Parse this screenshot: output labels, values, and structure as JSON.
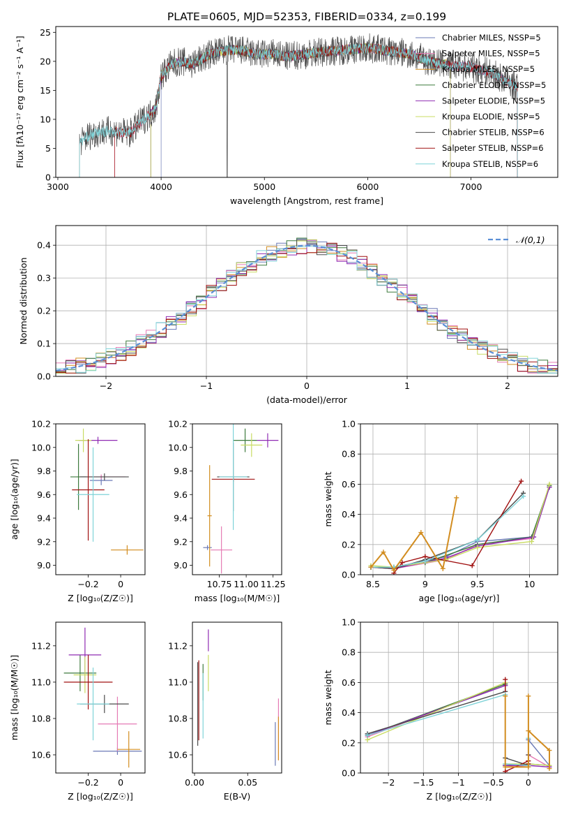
{
  "figure_title": "PLATE=0605, MJD=52353, FIBERID=0334, z=0.199",
  "series_colors": [
    "#6a79b6",
    "#e57ab4",
    "#d28d20",
    "#3d7a3d",
    "#8f2bb3",
    "#c9dc63",
    "#4a4a4a",
    "#a01010",
    "#7fd3d8"
  ],
  "chart_data": [
    {
      "id": "spectrum",
      "type": "line",
      "title": "PLATE=0605, MJD=52353, FIBERID=0334, z=0.199",
      "xlabel": "wavelength [Angstrom, rest frame]",
      "ylabel": "Flux [fλ10⁻¹⁷ erg cm⁻² s⁻¹ A⁻¹]",
      "xlim": [
        2980,
        7840
      ],
      "ylim": [
        0,
        26
      ],
      "xticks": [
        3000,
        4000,
        5000,
        6000,
        7000
      ],
      "yticks": [
        0,
        5,
        10,
        15,
        20,
        25
      ],
      "grid": false,
      "legend_position": "right",
      "legend": [
        "Chabrier MILES, NSSP=5",
        "Salpeter MILES, NSSP=5",
        "Kroupa MILES, NSSP=5",
        "Chabrier ELODIE, NSSP=5",
        "Salpeter ELODIE, NSSP=5",
        "Kroupa ELODIE, NSSP=5",
        "Chabrier STELIB, NSSP=6",
        "Salpeter STELIB, NSSP=6",
        "Kroupa STELIB, NSSP=6"
      ],
      "continuum": [
        [
          3210,
          6
        ],
        [
          3300,
          7.2
        ],
        [
          3400,
          7.8
        ],
        [
          3500,
          8.0
        ],
        [
          3600,
          7.8
        ],
        [
          3700,
          7.6
        ],
        [
          3800,
          9.5
        ],
        [
          3900,
          11
        ],
        [
          3950,
          12
        ],
        [
          4000,
          17.5
        ],
        [
          4100,
          19.5
        ],
        [
          4200,
          20
        ],
        [
          4300,
          19.5
        ],
        [
          4400,
          20.5
        ],
        [
          4500,
          21.5
        ],
        [
          4600,
          21.8
        ],
        [
          4700,
          22
        ],
        [
          4800,
          21.8
        ],
        [
          4900,
          21.3
        ],
        [
          5000,
          21.2
        ],
        [
          5100,
          21.3
        ],
        [
          5200,
          20.8
        ],
        [
          5300,
          21
        ],
        [
          5400,
          21.2
        ],
        [
          5500,
          21.5
        ],
        [
          5600,
          21.7
        ],
        [
          5800,
          22
        ],
        [
          6000,
          22.3
        ],
        [
          6200,
          21.8
        ],
        [
          6400,
          21.3
        ],
        [
          6600,
          20
        ],
        [
          6800,
          19.3
        ],
        [
          7000,
          19
        ],
        [
          7200,
          18
        ],
        [
          7300,
          17
        ],
        [
          7450,
          15.5
        ]
      ],
      "series_ranges": [
        [
          4000,
          7450
        ],
        [
          3550,
          7450
        ],
        [
          3900,
          6800
        ],
        [
          3900,
          6800
        ],
        [
          3900,
          6800
        ],
        [
          3900,
          6800
        ],
        [
          3210,
          7450
        ],
        [
          3550,
          7450
        ],
        [
          3210,
          7450
        ]
      ]
    },
    {
      "id": "residual-hist",
      "type": "step",
      "xlabel": "(data-model)/error",
      "ylabel": "Normed distribution",
      "xlim": [
        -2.5,
        2.5
      ],
      "ylim": [
        0,
        0.46
      ],
      "xticks": [
        -2,
        -1,
        0,
        1,
        2
      ],
      "yticks": [
        0.0,
        0.1,
        0.2,
        0.3,
        0.4
      ],
      "grid": true,
      "legend": [
        "𝒩(0,1)"
      ],
      "legend_position": "top-right",
      "bin_width": 0.1,
      "gaussian": {
        "mean": 0,
        "sigma": 1
      }
    },
    {
      "id": "age-vs-z",
      "type": "errorbar",
      "xlabel": "Z [log₁₀(Z/Z☉)]",
      "ylabel": "age  [log₁₀(age/yr)]",
      "xlim": [
        -0.4,
        0.15
      ],
      "ylim": [
        8.92,
        10.2
      ],
      "xticks": [
        -0.2,
        0.0
      ],
      "yticks": [
        9.0,
        9.2,
        9.4,
        9.6,
        9.8,
        10.0,
        10.2
      ],
      "points": [
        {
          "x": -0.12,
          "xe": 0.07,
          "y": 9.72,
          "ye": 0.04,
          "c": 0
        },
        {
          "x": -0.12,
          "xe": 0.15,
          "y": 9.75,
          "ye": 0.02,
          "c": 1
        },
        {
          "x": 0.04,
          "xe": 0.1,
          "y": 9.13,
          "ye": 0.04,
          "c": 2
        },
        {
          "x": -0.26,
          "xe": 0.05,
          "y": 9.75,
          "ye": 0.28,
          "c": 3
        },
        {
          "x": -0.14,
          "xe": 0.12,
          "y": 10.06,
          "ye": 0.03,
          "c": 4
        },
        {
          "x": -0.23,
          "xe": 0.05,
          "y": 10.06,
          "ye": 0.1,
          "c": 5
        },
        {
          "x": -0.1,
          "xe": 0.15,
          "y": 9.75,
          "ye": 0.03,
          "c": 6
        },
        {
          "x": -0.2,
          "xe": 0.1,
          "y": 9.64,
          "ye": 0.43,
          "c": 7
        },
        {
          "x": -0.17,
          "xe": 0.1,
          "y": 9.6,
          "ye": 0.4,
          "c": 8
        }
      ]
    },
    {
      "id": "age-vs-mass",
      "type": "errorbar",
      "xlabel": "mass [log₁₀(M/M☉)]",
      "ylabel": "",
      "xlim": [
        10.5,
        11.33
      ],
      "ylim": [
        8.92,
        10.2
      ],
      "xticks": [
        10.75,
        11.0,
        11.25
      ],
      "yticks": [
        9.0,
        9.2,
        9.4,
        9.6,
        9.8,
        10.0,
        10.2
      ],
      "xticklabels": [
        "10.75",
        "11.00",
        "11.25"
      ],
      "points": [
        {
          "x": 10.64,
          "xe": 0.04,
          "y": 9.15,
          "ye": 0.02,
          "c": 0
        },
        {
          "x": 10.77,
          "xe": 0.1,
          "y": 9.13,
          "ye": 0.2,
          "c": 1
        },
        {
          "x": 10.66,
          "xe": 0.02,
          "y": 9.42,
          "ye": 0.43,
          "c": 2
        },
        {
          "x": 10.99,
          "xe": 0.11,
          "y": 10.06,
          "ye": 0.1,
          "c": 3
        },
        {
          "x": 11.2,
          "xe": 0.1,
          "y": 10.06,
          "ye": 0.06,
          "c": 4
        },
        {
          "x": 11.05,
          "xe": 0.1,
          "y": 10.02,
          "ye": 0.1,
          "c": 5
        },
        {
          "x": 10.88,
          "xe": 0.15,
          "y": 9.75,
          "ye": 0.29,
          "c": 6
        },
        {
          "x": 10.88,
          "xe": 0.2,
          "y": 9.73,
          "ye": 0.02,
          "c": 7
        },
        {
          "x": 10.88,
          "xe": 0.13,
          "y": 9.75,
          "ye": 0.45,
          "c": 8
        }
      ]
    },
    {
      "id": "massweight-vs-age",
      "type": "line",
      "xlabel": "age  [log₁₀(age/yr)]",
      "ylabel": "mass weight",
      "xlim": [
        8.38,
        10.27
      ],
      "ylim": [
        0,
        1.0
      ],
      "xticks": [
        8.5,
        9.0,
        9.5,
        10.0
      ],
      "yticks": [
        0.0,
        0.2,
        0.4,
        0.6,
        0.8,
        1.0
      ],
      "grid": true,
      "series": [
        {
          "c": 0,
          "x": [
            8.48,
            8.7,
            9.2,
            9.5,
            10.02,
            10.19
          ],
          "y": [
            0.05,
            0.05,
            0.12,
            0.22,
            0.25,
            0.58
          ]
        },
        {
          "c": 1,
          "x": [
            8.48,
            8.7,
            9.2,
            9.5,
            10.02,
            10.19
          ],
          "y": [
            0.05,
            0.04,
            0.1,
            0.2,
            0.24,
            0.59
          ]
        },
        {
          "c": 2,
          "x": [
            8.48,
            8.6,
            8.7,
            8.96,
            9.17,
            9.3
          ],
          "y": [
            0.05,
            0.15,
            0.03,
            0.28,
            0.04,
            0.51
          ]
        },
        {
          "c": 3,
          "x": [
            8.48,
            8.7,
            9.0,
            9.5,
            10.02,
            10.19
          ],
          "y": [
            0.05,
            0.05,
            0.08,
            0.2,
            0.25,
            0.59
          ]
        },
        {
          "c": 4,
          "x": [
            8.48,
            8.7,
            9.2,
            9.5,
            10.04,
            10.19
          ],
          "y": [
            0.05,
            0.04,
            0.11,
            0.19,
            0.25,
            0.58
          ]
        },
        {
          "c": 5,
          "x": [
            8.48,
            8.7,
            9.2,
            9.5,
            10.02,
            10.19
          ],
          "y": [
            0.06,
            0.05,
            0.1,
            0.18,
            0.22,
            0.6
          ]
        },
        {
          "c": 6,
          "x": [
            8.48,
            8.7,
            9.0,
            9.5,
            9.94
          ],
          "y": [
            0.05,
            0.04,
            0.1,
            0.23,
            0.54
          ]
        },
        {
          "c": 7,
          "x": [
            8.7,
            8.78,
            9.0,
            9.45,
            9.92
          ],
          "y": [
            0.01,
            0.08,
            0.12,
            0.06,
            0.62
          ]
        },
        {
          "c": 8,
          "x": [
            8.48,
            8.7,
            9.0,
            9.5,
            9.94
          ],
          "y": [
            0.05,
            0.05,
            0.09,
            0.23,
            0.52
          ]
        }
      ]
    },
    {
      "id": "mass-vs-z",
      "type": "errorbar",
      "xlabel": "Z [log₁₀(Z/Z☉)]",
      "ylabel": "mass [log₁₀(M/M☉)]",
      "xlim": [
        -0.4,
        0.15
      ],
      "ylim": [
        10.5,
        11.33
      ],
      "xticks": [
        -0.2,
        0.0
      ],
      "yticks": [
        10.6,
        10.8,
        11.0,
        11.2
      ],
      "points": [
        {
          "x": -0.02,
          "xe": 0.15,
          "y": 10.62,
          "ye": 0.02,
          "c": 0
        },
        {
          "x": -0.02,
          "xe": 0.12,
          "y": 10.77,
          "ye": 0.15,
          "c": 1
        },
        {
          "x": 0.05,
          "xe": 0.07,
          "y": 10.63,
          "ye": 0.1,
          "c": 2
        },
        {
          "x": -0.25,
          "xe": 0.1,
          "y": 11.05,
          "ye": 0.1,
          "c": 3
        },
        {
          "x": -0.22,
          "xe": 0.1,
          "y": 11.15,
          "ye": 0.15,
          "c": 4
        },
        {
          "x": -0.22,
          "xe": 0.07,
          "y": 11.04,
          "ye": 0.1,
          "c": 5
        },
        {
          "x": -0.1,
          "xe": 0.15,
          "y": 10.88,
          "ye": 0.05,
          "c": 6
        },
        {
          "x": -0.2,
          "xe": 0.15,
          "y": 11.0,
          "ye": 0.15,
          "c": 7
        },
        {
          "x": -0.17,
          "xe": 0.1,
          "y": 10.88,
          "ye": 0.2,
          "c": 8
        }
      ]
    },
    {
      "id": "mass-vs-ebv",
      "type": "errorbar",
      "xlabel": "E(B-V)",
      "ylabel": "",
      "xlim": [
        -0.002,
        0.082
      ],
      "ylim": [
        10.5,
        11.33
      ],
      "xticks": [
        0.0,
        0.05
      ],
      "yticks": [
        10.6,
        10.8,
        11.0,
        11.2
      ],
      "xticklabels": [
        "0.00",
        "0.05"
      ],
      "points": [
        {
          "x": 0.076,
          "xe": 0,
          "y": 10.66,
          "ye": 0.12,
          "c": 0
        },
        {
          "x": 0.079,
          "xe": 0,
          "y": 10.74,
          "ye": 0.17,
          "c": 1
        },
        {
          "x": 0.079,
          "xe": 0,
          "y": 10.69,
          "ye": 0.12,
          "c": 2
        },
        {
          "x": 0.008,
          "xe": 0,
          "y": 11.0,
          "ye": 0.1,
          "c": 3
        },
        {
          "x": 0.013,
          "xe": 0,
          "y": 11.23,
          "ye": 0.06,
          "c": 4
        },
        {
          "x": 0.013,
          "xe": 0,
          "y": 11.05,
          "ye": 0.1,
          "c": 5
        },
        {
          "x": 0.003,
          "xe": 0,
          "y": 10.88,
          "ye": 0.23,
          "c": 6
        },
        {
          "x": 0.004,
          "xe": 0,
          "y": 10.9,
          "ye": 0.22,
          "c": 7
        },
        {
          "x": 0.008,
          "xe": 0,
          "y": 10.87,
          "ye": 0.18,
          "c": 8
        }
      ]
    },
    {
      "id": "massweight-vs-z",
      "type": "line",
      "xlabel": "Z [log₁₀(Z/Z☉)]",
      "ylabel": "mass weight",
      "xlim": [
        -2.4,
        0.42
      ],
      "ylim": [
        0,
        1.0
      ],
      "xticks": [
        -2.0,
        -1.5,
        -1.0,
        -0.5,
        0.0
      ],
      "yticks": [
        0.0,
        0.2,
        0.4,
        0.6,
        0.8,
        1.0
      ],
      "grid": true,
      "series": [
        {
          "c": 0,
          "x": [
            -2.3,
            -0.33,
            -0.33,
            0.0,
            0.0,
            0.3
          ],
          "y": [
            0.25,
            0.58,
            0.05,
            0.05,
            0.22,
            0.05
          ]
        },
        {
          "c": 1,
          "x": [
            -2.3,
            -0.33,
            -0.33,
            0.0,
            0.0,
            0.3
          ],
          "y": [
            0.24,
            0.59,
            0.05,
            0.04,
            0.12,
            0.04
          ]
        },
        {
          "c": 2,
          "x": [
            -0.33,
            -0.33,
            0.0,
            0.0,
            0.0,
            0.3,
            0.3
          ],
          "y": [
            0.51,
            0.04,
            0.04,
            0.51,
            0.28,
            0.15,
            0.03
          ]
        },
        {
          "c": 3,
          "x": [
            -2.3,
            -0.33,
            -0.33,
            0.0,
            0.3
          ],
          "y": [
            0.25,
            0.59,
            0.05,
            0.06,
            0.05
          ]
        },
        {
          "c": 4,
          "x": [
            -2.3,
            -0.33,
            -0.33,
            0.0,
            0.3
          ],
          "y": [
            0.25,
            0.58,
            0.05,
            0.05,
            0.04
          ]
        },
        {
          "c": 5,
          "x": [
            -2.3,
            -0.33,
            -0.33,
            0.0,
            0.3
          ],
          "y": [
            0.22,
            0.6,
            0.06,
            0.06,
            0.05
          ]
        },
        {
          "c": 6,
          "x": [
            -2.3,
            -0.33,
            -0.33,
            0.0,
            0.0
          ],
          "y": [
            0.26,
            0.54,
            0.1,
            0.05,
            0.12
          ]
        },
        {
          "c": 7,
          "x": [
            -0.33,
            -0.33,
            0.0,
            0.0
          ],
          "y": [
            0.62,
            0.01,
            0.08,
            0.06
          ]
        },
        {
          "c": 8,
          "x": [
            -2.3,
            -0.33,
            -0.33,
            0.0,
            0.0
          ],
          "y": [
            0.25,
            0.52,
            0.06,
            0.05,
            0.23
          ]
        }
      ]
    }
  ]
}
